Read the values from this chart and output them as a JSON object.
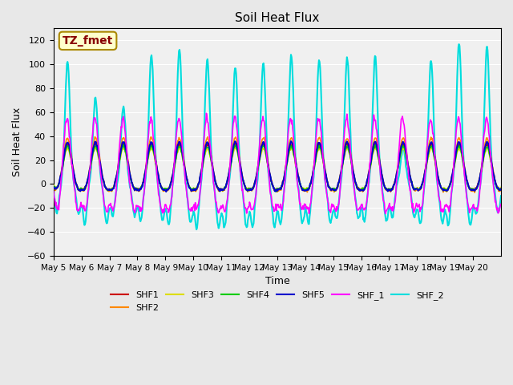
{
  "title": "Soil Heat Flux",
  "xlabel": "Time",
  "ylabel": "Soil Heat Flux",
  "ylim": [
    -60,
    130
  ],
  "yticks": [
    -60,
    -40,
    -20,
    0,
    20,
    40,
    60,
    80,
    100,
    120
  ],
  "x_tick_labels": [
    "May 5",
    "May 6",
    "May 7",
    "May 8",
    "May 9",
    "May 10",
    "May 11",
    "May 12",
    "May 13",
    "May 14",
    "May 15",
    "May 16",
    "May 17",
    "May 18",
    "May 19",
    "May 20"
  ],
  "series": {
    "SHF1": {
      "color": "#cc0000",
      "lw": 1.2
    },
    "SHF2": {
      "color": "#ff8800",
      "lw": 1.2
    },
    "SHF3": {
      "color": "#dddd00",
      "lw": 1.2
    },
    "SHF4": {
      "color": "#00cc00",
      "lw": 1.2
    },
    "SHF5": {
      "color": "#0000cc",
      "lw": 1.5
    },
    "SHF_1": {
      "color": "#ff00ff",
      "lw": 1.2
    },
    "SHF_2": {
      "color": "#00dddd",
      "lw": 1.5
    }
  },
  "annotation_text": "TZ_fmet",
  "annotation_color": "#880000",
  "annotation_bg": "#ffffcc",
  "annotation_border": "#aa8800",
  "bg_color": "#e8e8e8",
  "plot_bg": "#f0f0f0",
  "n_points_per_day": 48,
  "n_days": 16
}
